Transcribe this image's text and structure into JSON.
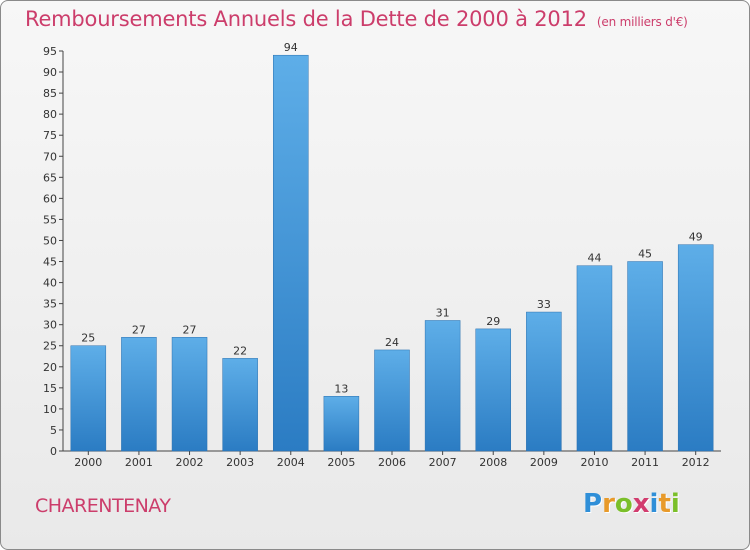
{
  "title": "Remboursements Annuels de la Dette de 2000 à 2012",
  "subtitle": "(en milliers d'€)",
  "commune": "CHARENTENAY",
  "logo": {
    "text": "Proxiti",
    "colors": [
      "#2f8fd8",
      "#e89a2a",
      "#7bbf2a",
      "#d23c6e",
      "#2f8fd8",
      "#e89a2a",
      "#7bbf2a"
    ]
  },
  "chart_data": {
    "type": "bar",
    "categories": [
      "2000",
      "2001",
      "2002",
      "2003",
      "2004",
      "2005",
      "2006",
      "2007",
      "2008",
      "2009",
      "2010",
      "2011",
      "2012"
    ],
    "values": [
      25,
      27,
      27,
      22,
      94,
      13,
      24,
      31,
      29,
      33,
      44,
      45,
      49
    ],
    "title": "Remboursements Annuels de la Dette de 2000 à 2012",
    "subtitle": "(en milliers d'€)",
    "ylim": [
      0,
      95
    ],
    "yticks": [
      0,
      5,
      10,
      15,
      20,
      25,
      30,
      35,
      40,
      45,
      50,
      55,
      60,
      65,
      70,
      75,
      80,
      85,
      90,
      95
    ],
    "grid": false,
    "bar_color": "#3a8fd6",
    "show_value_labels": true
  }
}
